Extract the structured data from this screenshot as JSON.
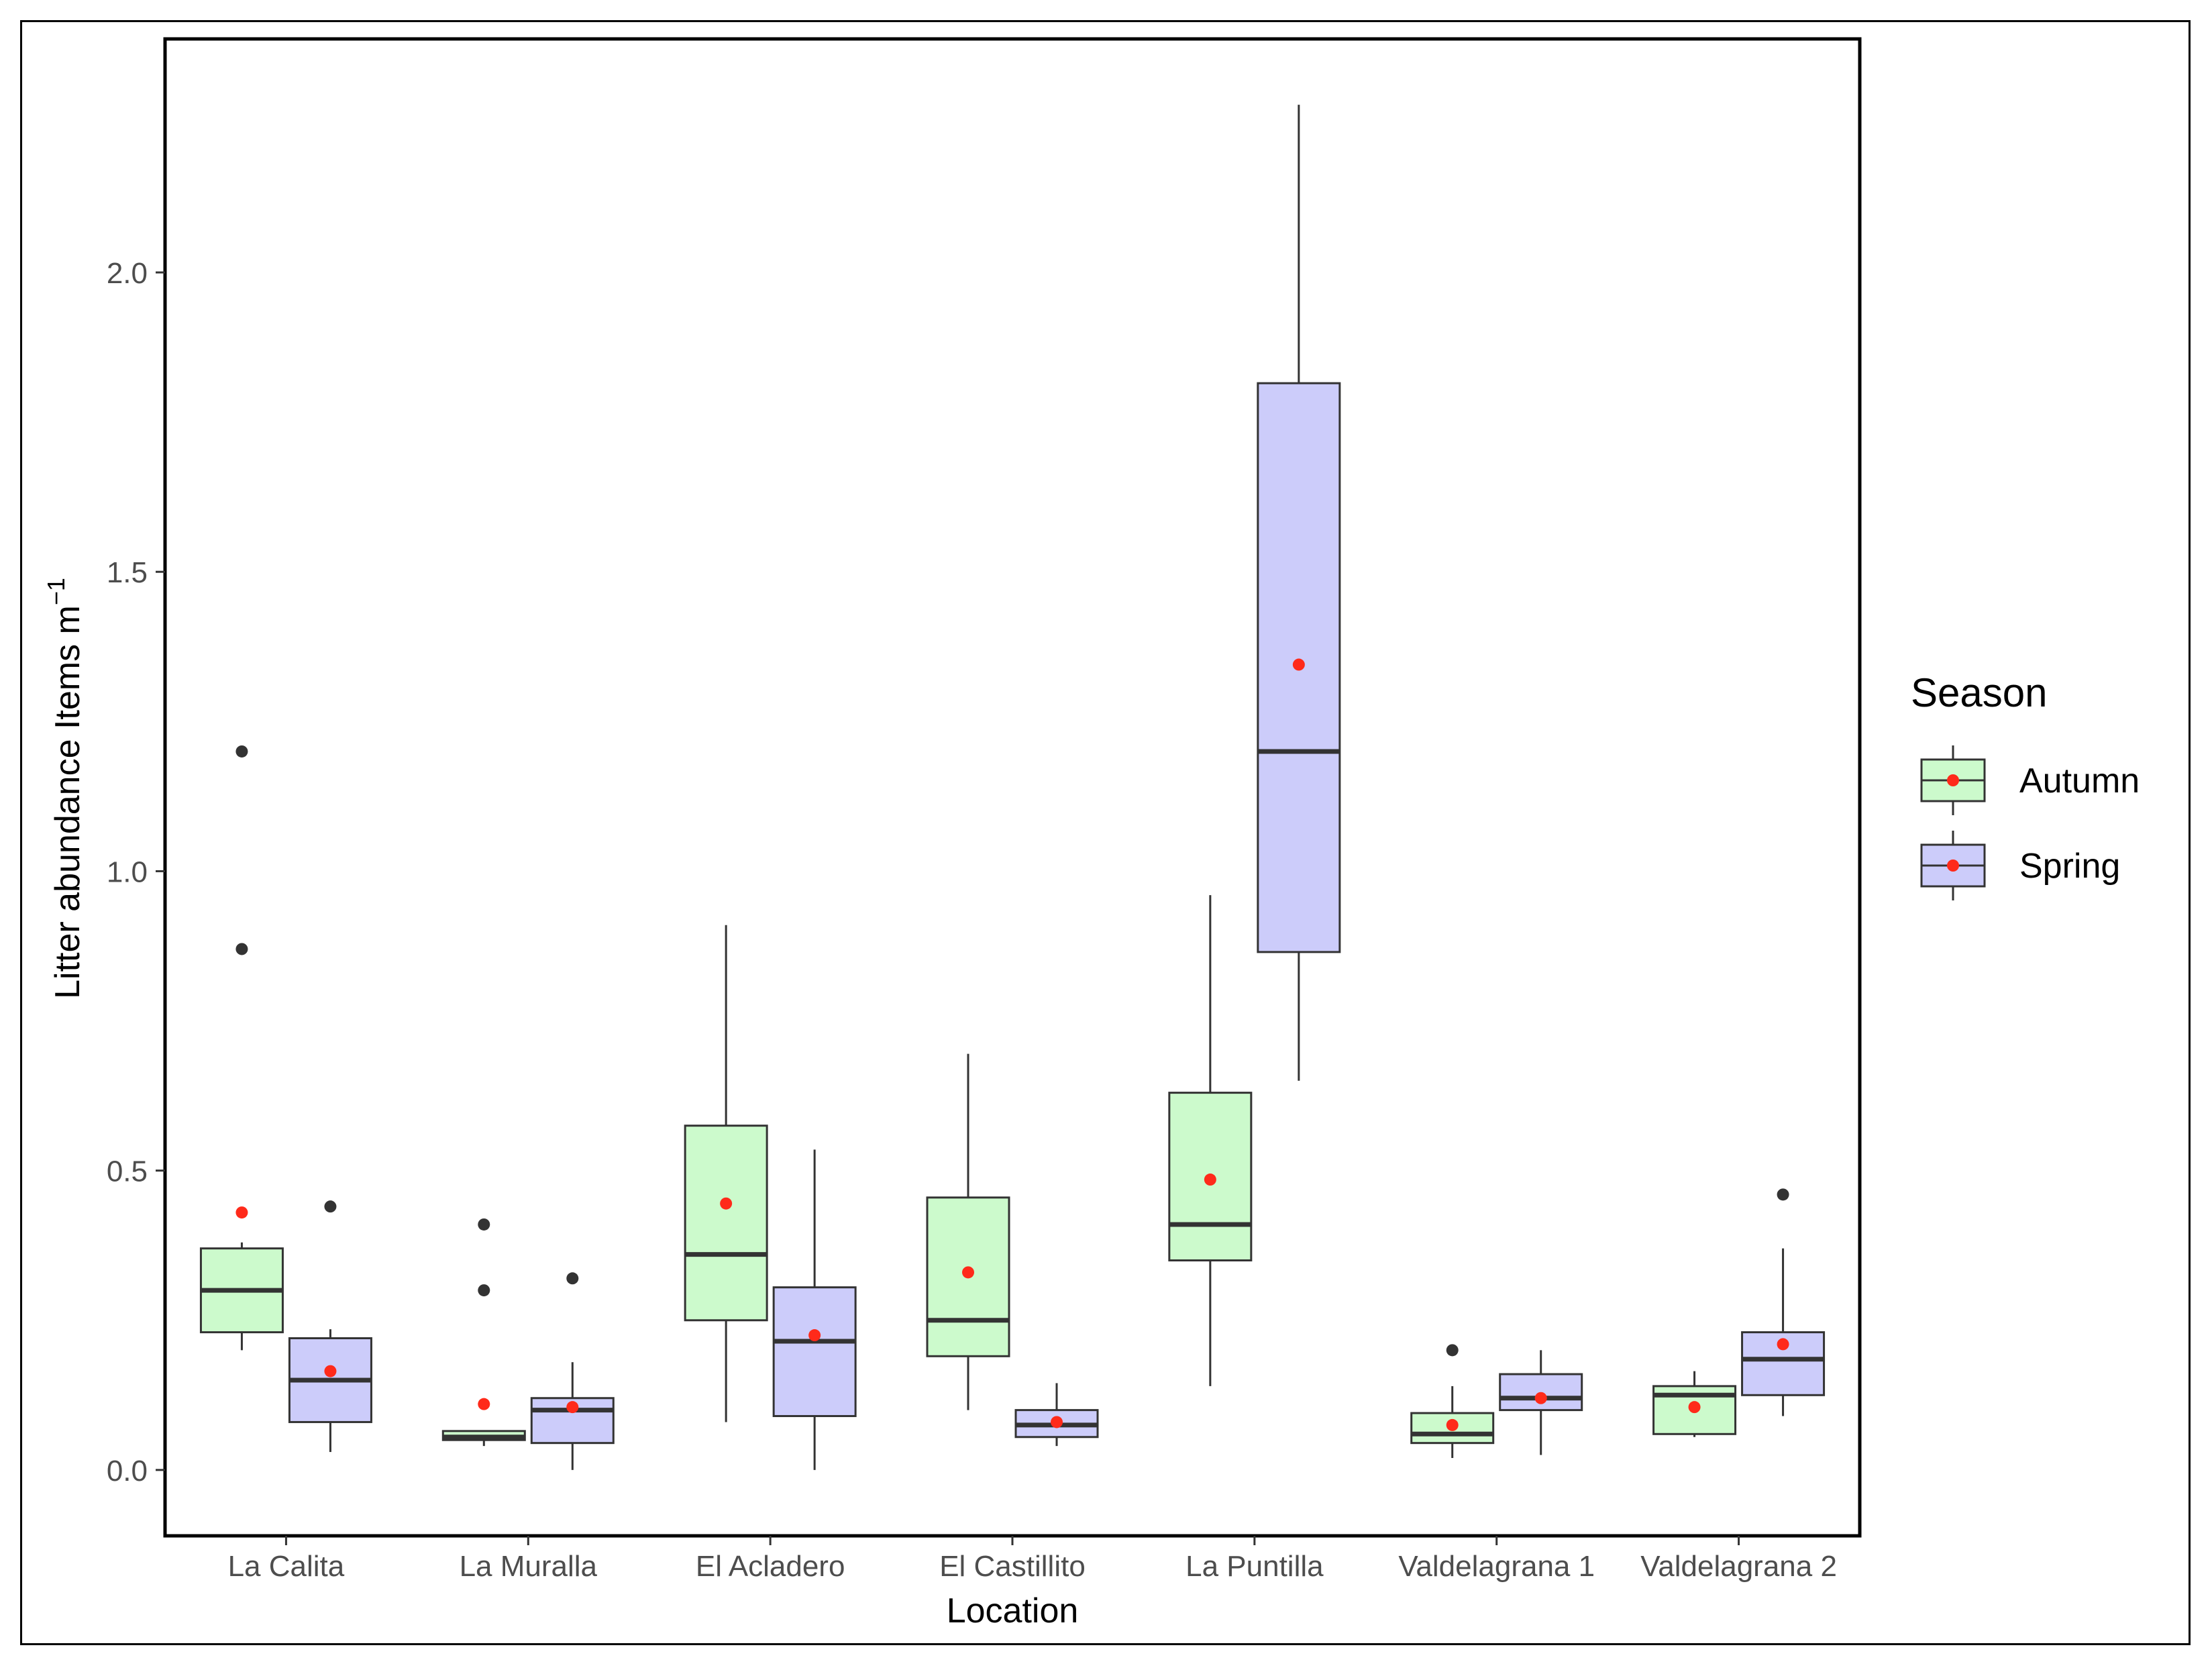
{
  "chart_data": {
    "type": "boxplot",
    "title": "",
    "xlabel": "Location",
    "ylabel_main": "Litter abundance Items m",
    "ylabel_superscript": "−1",
    "ylim": [
      -0.11,
      2.39
    ],
    "yticks": [
      0.0,
      0.5,
      1.0,
      1.5,
      2.0
    ],
    "ytick_labels": [
      "0.0",
      "0.5",
      "1.0",
      "1.5",
      "2.0"
    ],
    "grid": false,
    "legend": {
      "title": "Season",
      "position": "right",
      "entries": [
        {
          "label": "Autumn",
          "fill": "#ccfacc"
        },
        {
          "label": "Spring",
          "fill": "#ccccfa"
        }
      ]
    },
    "categories": [
      "La Calita",
      "La Muralla",
      "El Acladero",
      "El Castillito",
      "La Puntilla",
      "Valdelagrana 1",
      "Valdelagrana 2"
    ],
    "series": [
      {
        "name": "Autumn",
        "fill": "#ccfacc",
        "boxes": [
          {
            "whisker_low": 0.2,
            "q1": 0.23,
            "median": 0.3,
            "q3": 0.37,
            "whisker_high": 0.38,
            "mean": 0.43,
            "outliers": [
              0.87,
              1.2
            ]
          },
          {
            "whisker_low": 0.04,
            "q1": 0.05,
            "median": 0.055,
            "q3": 0.065,
            "whisker_high": 0.065,
            "mean": 0.11,
            "outliers": [
              0.3,
              0.41
            ]
          },
          {
            "whisker_low": 0.08,
            "q1": 0.25,
            "median": 0.36,
            "q3": 0.575,
            "whisker_high": 0.91,
            "mean": 0.445,
            "outliers": []
          },
          {
            "whisker_low": 0.1,
            "q1": 0.19,
            "median": 0.25,
            "q3": 0.455,
            "whisker_high": 0.695,
            "mean": 0.33,
            "outliers": []
          },
          {
            "whisker_low": 0.14,
            "q1": 0.35,
            "median": 0.41,
            "q3": 0.63,
            "whisker_high": 0.96,
            "mean": 0.485,
            "outliers": []
          },
          {
            "whisker_low": 0.02,
            "q1": 0.045,
            "median": 0.06,
            "q3": 0.095,
            "whisker_high": 0.14,
            "mean": 0.075,
            "outliers": [
              0.2
            ]
          },
          {
            "whisker_low": 0.055,
            "q1": 0.06,
            "median": 0.125,
            "q3": 0.14,
            "whisker_high": 0.165,
            "mean": 0.105,
            "outliers": []
          }
        ]
      },
      {
        "name": "Spring",
        "fill": "#ccccfa",
        "boxes": [
          {
            "whisker_low": 0.03,
            "q1": 0.08,
            "median": 0.15,
            "q3": 0.22,
            "whisker_high": 0.235,
            "mean": 0.165,
            "outliers": [
              0.44
            ]
          },
          {
            "whisker_low": 0.0,
            "q1": 0.045,
            "median": 0.1,
            "q3": 0.12,
            "whisker_high": 0.18,
            "mean": 0.105,
            "outliers": [
              0.32
            ]
          },
          {
            "whisker_low": 0.0,
            "q1": 0.09,
            "median": 0.215,
            "q3": 0.305,
            "whisker_high": 0.535,
            "mean": 0.225,
            "outliers": []
          },
          {
            "whisker_low": 0.04,
            "q1": 0.055,
            "median": 0.075,
            "q3": 0.1,
            "whisker_high": 0.145,
            "mean": 0.08,
            "outliers": []
          },
          {
            "whisker_low": 0.65,
            "q1": 0.865,
            "median": 1.2,
            "q3": 1.815,
            "whisker_high": 2.28,
            "mean": 1.345,
            "outliers": []
          },
          {
            "whisker_low": 0.025,
            "q1": 0.1,
            "median": 0.12,
            "q3": 0.16,
            "whisker_high": 0.2,
            "mean": 0.12,
            "outliers": []
          },
          {
            "whisker_low": 0.09,
            "q1": 0.125,
            "median": 0.185,
            "q3": 0.23,
            "whisker_high": 0.37,
            "mean": 0.21,
            "outliers": [
              0.46
            ]
          }
        ]
      }
    ],
    "colors": {
      "mean_point": "#ff2a1a",
      "outlier_point": "#333333",
      "box_stroke": "#333333",
      "axis": "#000000",
      "tick_label": "#4d4d4d"
    }
  }
}
